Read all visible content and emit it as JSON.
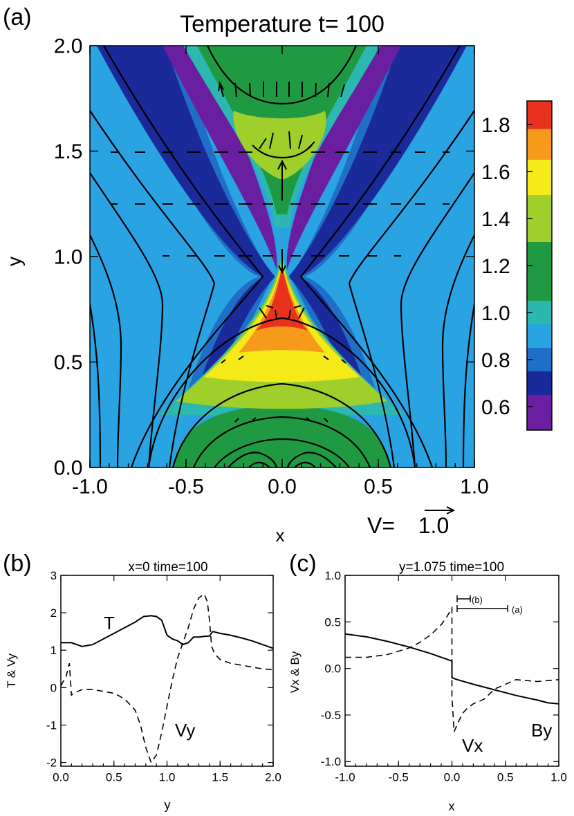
{
  "chart_data": [
    {
      "panel": "(a)",
      "type": "heatmap",
      "title": "Temperature t= 100",
      "xlabel": "x",
      "ylabel": "y",
      "xlim": [
        -1.0,
        1.0
      ],
      "ylim": [
        0.0,
        2.0
      ],
      "xticks": [
        "-1.0",
        "-0.5",
        "0.0",
        "0.5",
        "1.0"
      ],
      "yticks": [
        "0.0",
        "0.5",
        "1.0",
        "1.5",
        "2.0"
      ],
      "colorbar": {
        "levels": [
          0.5,
          0.6,
          0.7,
          0.8,
          0.9,
          1.0,
          1.1,
          1.2,
          1.3,
          1.4,
          1.5,
          1.6,
          1.7,
          1.8,
          1.9
        ],
        "colors": [
          "#6a1fa0",
          "#1a2a9a",
          "#1f6fc8",
          "#2aa3e3",
          "#2cb8b0",
          "#1f9a42",
          "#1f9a42",
          "#9fcf2a",
          "#f4ea1a",
          "#f59a1a",
          "#e8321e"
        ],
        "ticks": [
          "0.6",
          "0.8",
          "1.0",
          "1.2",
          "1.4",
          "1.6",
          "1.8"
        ]
      },
      "velocity_label": "V=",
      "velocity_value": "1.0"
    },
    {
      "panel": "(b)",
      "type": "line",
      "title": "x=0  time=100",
      "xlabel": "y",
      "ylabel": "T & Vy",
      "xlim": [
        0.0,
        2.0
      ],
      "ylim": [
        -2.1,
        3.0
      ],
      "xticks": [
        "0.0",
        "0.5",
        "1.0",
        "1.5",
        "2.0"
      ],
      "yticks": [
        "-2",
        "-1",
        "0",
        "1",
        "2",
        "3"
      ],
      "series": [
        {
          "name": "T",
          "x": [
            0,
            0.1,
            0.2,
            0.3,
            0.4,
            0.5,
            0.6,
            0.7,
            0.78,
            0.85,
            0.9,
            0.95,
            1.0,
            1.05,
            1.1,
            1.15,
            1.2,
            1.25,
            1.3,
            1.35,
            1.4,
            1.43,
            1.5,
            1.6,
            1.7,
            1.8,
            1.9,
            2.0
          ],
          "y": [
            1.2,
            1.2,
            1.1,
            1.15,
            1.3,
            1.45,
            1.6,
            1.75,
            1.9,
            1.92,
            1.9,
            1.8,
            1.4,
            1.3,
            1.25,
            1.15,
            1.2,
            1.35,
            1.35,
            1.37,
            1.38,
            1.5,
            1.45,
            1.4,
            1.33,
            1.25,
            1.15,
            1.05
          ]
        },
        {
          "name": "Vy",
          "x": [
            0,
            0.05,
            0.08,
            0.1,
            0.12,
            0.2,
            0.3,
            0.4,
            0.5,
            0.6,
            0.7,
            0.75,
            0.8,
            0.85,
            0.9,
            0.95,
            1.0,
            1.05,
            1.1,
            1.15,
            1.2,
            1.25,
            1.3,
            1.35,
            1.38,
            1.4,
            1.42,
            1.45,
            1.5,
            1.6,
            1.7,
            1.8,
            1.9,
            2.0
          ],
          "y": [
            0.05,
            0.3,
            0.65,
            -0.2,
            -0.15,
            -0.05,
            -0.05,
            -0.1,
            -0.15,
            -0.3,
            -0.6,
            -1.0,
            -1.6,
            -2.0,
            -1.8,
            -1.2,
            -0.5,
            0.2,
            0.8,
            1.2,
            1.6,
            2.1,
            2.4,
            2.5,
            2.3,
            1.8,
            1.1,
            0.9,
            0.75,
            0.65,
            0.6,
            0.55,
            0.5,
            0.48
          ]
        }
      ],
      "annotations": [
        {
          "text": "T"
        },
        {
          "text": "Vy"
        }
      ]
    },
    {
      "panel": "(c)",
      "type": "line",
      "title": "y=1.075  time=100",
      "xlabel": "x",
      "ylabel": "Vx & By",
      "xlim": [
        -1.0,
        1.0
      ],
      "ylim": [
        -1.05,
        1.0
      ],
      "xticks": [
        "-1.0",
        "-0.5",
        "0.0",
        "0.5",
        "1.0"
      ],
      "yticks": [
        "-1.0",
        "-0.5",
        "0.0",
        "0.5",
        "1.0"
      ],
      "series": [
        {
          "name": "By",
          "x": [
            -1.0,
            -0.8,
            -0.6,
            -0.4,
            -0.2,
            -0.05,
            0.0,
            0.0,
            0.05,
            0.2,
            0.4,
            0.6,
            0.8,
            0.9,
            1.0
          ],
          "y": [
            0.37,
            0.34,
            0.29,
            0.23,
            0.16,
            0.1,
            0.08,
            -0.1,
            -0.12,
            -0.17,
            -0.23,
            -0.29,
            -0.34,
            -0.37,
            -0.38
          ]
        },
        {
          "name": "Vx",
          "x": [
            -1.0,
            -0.8,
            -0.6,
            -0.4,
            -0.3,
            -0.2,
            -0.1,
            -0.05,
            0.0,
            0.0,
            0.02,
            0.05,
            0.1,
            0.15,
            0.2,
            0.3,
            0.4,
            0.6,
            0.8,
            1.0
          ],
          "y": [
            0.12,
            0.12,
            0.15,
            0.22,
            0.28,
            0.36,
            0.47,
            0.55,
            0.65,
            -0.3,
            -0.68,
            -0.6,
            -0.48,
            -0.42,
            -0.38,
            -0.33,
            -0.22,
            -0.12,
            -0.14,
            -0.12
          ]
        }
      ],
      "annotations": [
        {
          "text": "Vx"
        },
        {
          "text": "By"
        },
        {
          "text": "(b)"
        },
        {
          "text": "(a)"
        }
      ]
    }
  ]
}
